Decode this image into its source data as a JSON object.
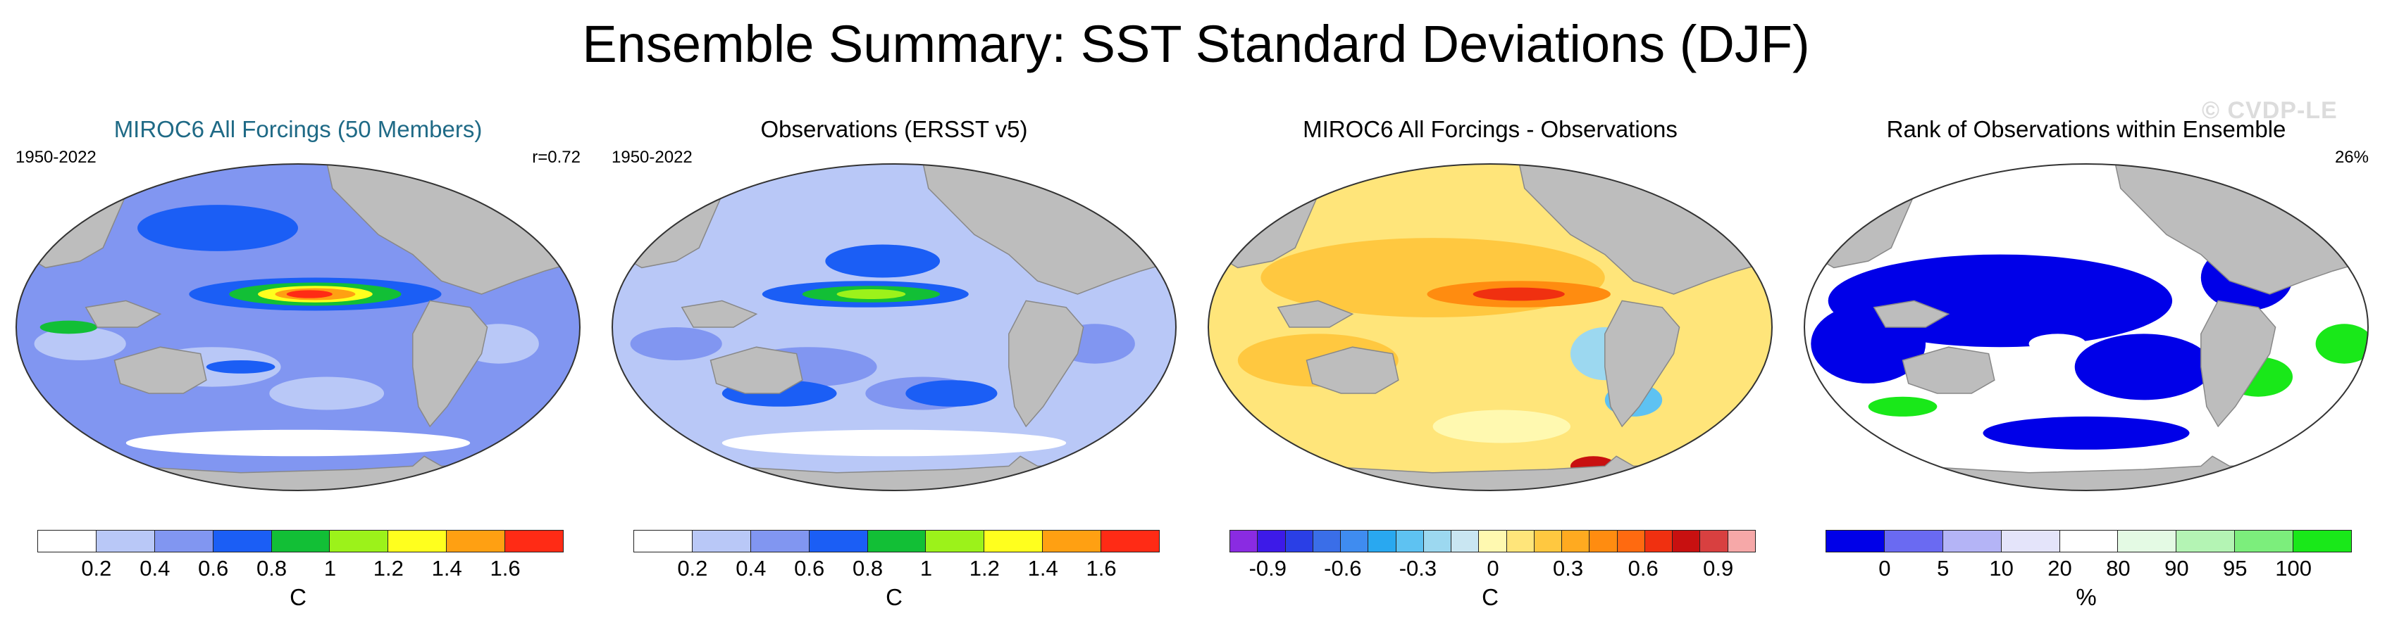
{
  "title": "Ensemble Summary: SST Standard Deviations (DJF)",
  "watermark": "© CVDP-LE",
  "panels": [
    {
      "title": "MIROC6 All Forcings (50 Members)",
      "title_color": "#1f6a86",
      "left_label": "1950-2022",
      "right_label": "r=0.72",
      "map_style": "ensemble",
      "colorbar": {
        "colors": [
          "#ffffff",
          "#b9c8f7",
          "#8196f1",
          "#1b5ef5",
          "#12bf36",
          "#9cf21a",
          "#ffff1e",
          "#ffa012",
          "#ff2b15"
        ],
        "ticks": [
          "0.2",
          "0.4",
          "0.6",
          "0.8",
          "1",
          "1.2",
          "1.4",
          "1.6"
        ],
        "unit": "C"
      }
    },
    {
      "title": "Observations (ERSST v5)",
      "title_color": "#000000",
      "left_label": "1950-2022",
      "right_label": "",
      "map_style": "observations",
      "colorbar": {
        "colors": [
          "#ffffff",
          "#b9c8f7",
          "#8196f1",
          "#1b5ef5",
          "#12bf36",
          "#9cf21a",
          "#ffff1e",
          "#ffa012",
          "#ff2b15"
        ],
        "ticks": [
          "0.2",
          "0.4",
          "0.6",
          "0.8",
          "1",
          "1.2",
          "1.4",
          "1.6"
        ],
        "unit": "C"
      }
    },
    {
      "title": "MIROC6 All Forcings - Observations",
      "title_color": "#000000",
      "left_label": "",
      "right_label": "",
      "map_style": "difference",
      "colorbar": {
        "colors": [
          "#8a2be2",
          "#3d1ae8",
          "#2a3fe6",
          "#3a6ee8",
          "#3f8cf0",
          "#29a8f0",
          "#5ec2f2",
          "#9cd8f0",
          "#c9e6f2",
          "#fff9b0",
          "#ffe57a",
          "#ffc840",
          "#ffaa20",
          "#ff8c10",
          "#ff6a10",
          "#f03010",
          "#c81010",
          "#d84040",
          "#f6a8a8"
        ],
        "ticks": [
          "-0.9",
          "-0.6",
          "-0.3",
          "0",
          "0.3",
          "0.6",
          "0.9"
        ],
        "tick_positions": [
          1.5,
          4.5,
          7.5,
          10.5,
          13.5,
          16.5,
          19.5
        ],
        "unit": "C"
      }
    },
    {
      "title": "Rank of Observations within Ensemble",
      "title_color": "#000000",
      "left_label": "",
      "right_label": "26%",
      "map_style": "rank",
      "colorbar": {
        "colors": [
          "#0000e8",
          "#6a6af2",
          "#b4b4f6",
          "#e4e4fa",
          "#ffffff",
          "#e4fae4",
          "#b4f4b4",
          "#7cee7c",
          "#19e819"
        ],
        "ticks": [
          "0",
          "5",
          "10",
          "20",
          "80",
          "90",
          "95",
          "100"
        ],
        "unit": "%"
      }
    }
  ],
  "chart_data": [
    {
      "type": "heatmap",
      "title": "MIROC6 All Forcings (50 Members)",
      "period": "1950-2022",
      "pattern_correlation": 0.72,
      "colorbar_levels": [
        0.2,
        0.4,
        0.6,
        0.8,
        1,
        1.2,
        1.4,
        1.6
      ],
      "unit": "C",
      "features": {
        "tropical_pacific_max": 1.7,
        "kuroshio_gulfstream": 1.0,
        "background": 0.5
      }
    },
    {
      "type": "heatmap",
      "title": "Observations (ERSST v5)",
      "period": "1950-2022",
      "colorbar_levels": [
        0.2,
        0.4,
        0.6,
        0.8,
        1,
        1.2,
        1.4,
        1.6
      ],
      "unit": "C",
      "features": {
        "tropical_pacific_max": 1.1,
        "background": 0.4
      }
    },
    {
      "type": "heatmap",
      "title": "MIROC6 All Forcings - Observations",
      "colorbar_levels": [
        -0.9,
        -0.6,
        -0.3,
        0,
        0.3,
        0.6,
        0.9
      ],
      "unit": "C",
      "features": {
        "tropical_pacific_max": 0.8,
        "eastern_pacific": -0.3,
        "background": 0.15
      }
    },
    {
      "type": "heatmap",
      "title": "Rank of Observations within Ensemble",
      "right_label": "26%",
      "colorbar_levels": [
        0,
        5,
        10,
        20,
        80,
        90,
        95,
        100
      ],
      "unit": "%"
    }
  ]
}
